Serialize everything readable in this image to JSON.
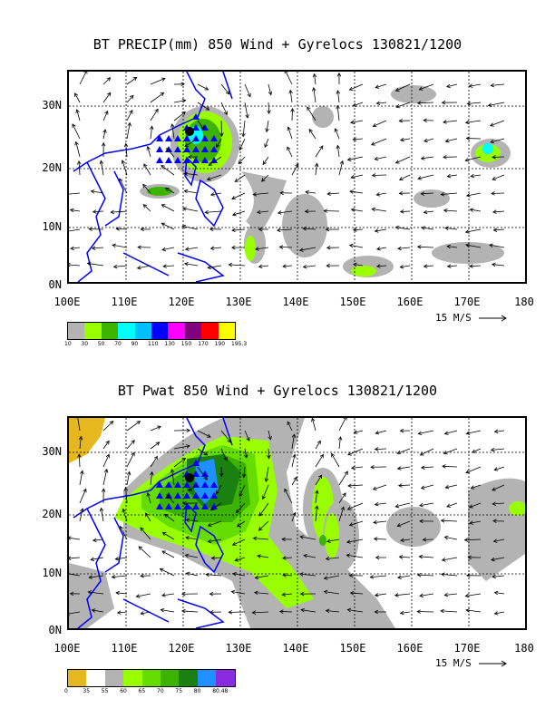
{
  "panels": [
    {
      "title": "BT PRECIP(mm) 850 Wind + Gyrelocs 130821/1200",
      "lat_labels": [
        "30N",
        "20N",
        "10N",
        "0N"
      ],
      "lon_labels": [
        "100E",
        "110E",
        "120E",
        "130E",
        "140E",
        "150E",
        "160E",
        "170E",
        "180"
      ],
      "scale_label": "15 M/S",
      "colorbar": {
        "colors": [
          "#b3b3b3",
          "#99ff00",
          "#3cb300",
          "#00ffff",
          "#00bfff",
          "#0000ff",
          "#ff00ff",
          "#800080",
          "#ff0000",
          "#ffff00"
        ],
        "labels": [
          "10",
          "30",
          "50",
          "70",
          "90",
          "110",
          "130",
          "150",
          "170",
          "190",
          "195.3"
        ]
      }
    },
    {
      "title": "BT Pwat 850 Wind + Gyrelocs 130821/1200",
      "lat_labels": [
        "30N",
        "20N",
        "10N",
        "0N"
      ],
      "lon_labels": [
        "100E",
        "110E",
        "120E",
        "130E",
        "140E",
        "150E",
        "160E",
        "170E",
        "180"
      ],
      "scale_label": "15 M/S",
      "colorbar": {
        "colors": [
          "#e6b820",
          "#ffffff",
          "#b3b3b3",
          "#99ff00",
          "#66dd00",
          "#3cb300",
          "#1a8010",
          "#1e90ff",
          "#8a2be2"
        ],
        "labels": [
          "0",
          "35",
          "55",
          "60",
          "65",
          "70",
          "75",
          "80",
          "80.48"
        ]
      }
    }
  ]
}
